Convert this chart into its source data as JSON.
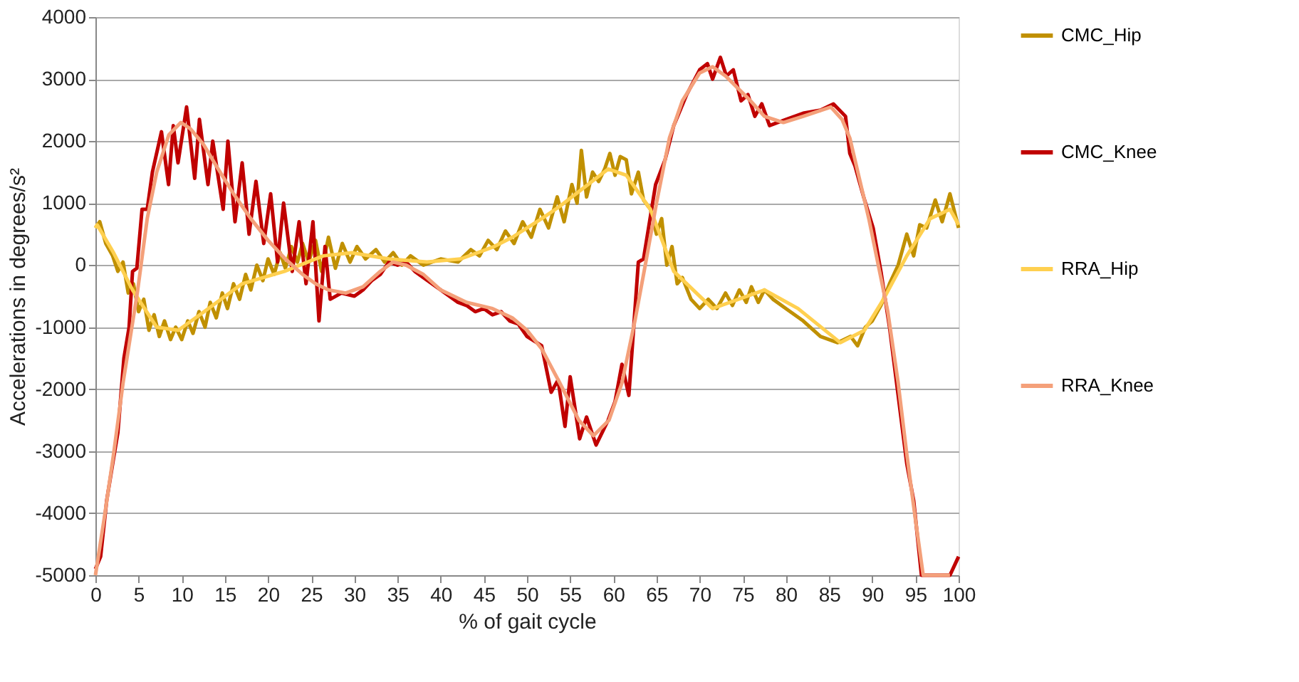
{
  "chart_data": {
    "type": "line",
    "xlabel": "% of gait cycle",
    "ylabel": "Accelerations in degrees/s²",
    "xlim": [
      0,
      100
    ],
    "xticks": [
      0,
      5,
      10,
      15,
      20,
      25,
      30,
      35,
      40,
      45,
      50,
      55,
      60,
      65,
      70,
      75,
      80,
      85,
      90,
      95,
      100
    ],
    "ylim": [
      -5000,
      4000
    ],
    "yticks": [
      -5000,
      -4000,
      -3000,
      -2000,
      -1000,
      0,
      1000,
      2000,
      3000,
      4000
    ],
    "grid": "y",
    "legend": "right",
    "series": [
      {
        "name": "CMC_Hip",
        "color": "#c09000",
        "x": [
          0,
          0.5,
          1.2,
          2,
          2.6,
          3.2,
          3.8,
          4.4,
          5,
          5.6,
          6.2,
          6.8,
          7.4,
          8,
          8.7,
          9.3,
          10,
          10.7,
          11.3,
          12,
          12.7,
          13.3,
          14,
          14.7,
          15.3,
          16,
          16.7,
          17.4,
          18,
          18.7,
          19.4,
          20,
          20.7,
          21.4,
          22,
          22.7,
          23.4,
          24,
          24.7,
          25.5,
          26.2,
          27,
          27.8,
          28.6,
          29.5,
          30.3,
          31.3,
          32.5,
          33.5,
          34.5,
          35.5,
          36.5,
          38,
          40,
          42,
          43.5,
          44.5,
          45.5,
          46.5,
          47.5,
          48.5,
          49.5,
          50.5,
          51.5,
          52.5,
          53.5,
          54.3,
          55.2,
          55.8,
          56.3,
          56.9,
          57.6,
          58.3,
          59,
          59.6,
          60.2,
          60.8,
          61.5,
          62.1,
          62.9,
          63.5,
          64.3,
          65,
          65.6,
          66.2,
          66.8,
          67.4,
          68,
          69,
          70,
          71,
          72,
          73,
          73.8,
          74.6,
          75.4,
          76,
          76.8,
          77.5,
          78.5,
          80,
          82,
          84,
          86,
          87.5,
          88.3,
          89.2,
          90,
          91,
          92,
          93,
          94,
          94.8,
          95.5,
          96.3,
          97.3,
          98.1,
          99,
          100
        ],
        "values": [
          600,
          700,
          350,
          150,
          -100,
          50,
          -450,
          -300,
          -750,
          -550,
          -1050,
          -800,
          -1150,
          -900,
          -1200,
          -1000,
          -1200,
          -900,
          -1100,
          -750,
          -1000,
          -600,
          -850,
          -450,
          -700,
          -300,
          -550,
          -150,
          -400,
          0,
          -250,
          100,
          -150,
          200,
          -50,
          300,
          50,
          350,
          50,
          400,
          -100,
          450,
          -50,
          350,
          50,
          300,
          100,
          250,
          50,
          200,
          0,
          150,
          0,
          100,
          50,
          250,
          150,
          400,
          250,
          550,
          350,
          700,
          450,
          900,
          600,
          1100,
          700,
          1300,
          1000,
          1850,
          1100,
          1500,
          1350,
          1550,
          1800,
          1450,
          1750,
          1700,
          1150,
          1500,
          1050,
          900,
          500,
          750,
          0,
          300,
          -300,
          -200,
          -550,
          -700,
          -550,
          -700,
          -450,
          -650,
          -400,
          -600,
          -350,
          -600,
          -400,
          -550,
          -700,
          -900,
          -1150,
          -1250,
          -1150,
          -1300,
          -1000,
          -900,
          -650,
          -300,
          0,
          500,
          150,
          650,
          600,
          1050,
          700,
          1150,
          600
        ]
      },
      {
        "name": "CMC_Knee",
        "color": "#c00000",
        "x": [
          0,
          0.6,
          1.3,
          2,
          2.6,
          3.3,
          3.9,
          4.3,
          4.8,
          5.4,
          6,
          6.6,
          7.65,
          8.47,
          9.02,
          9.57,
          10.56,
          11.5,
          12.05,
          13.04,
          13.59,
          14.8,
          15.35,
          16.17,
          17,
          17.8,
          18.6,
          19.5,
          20.3,
          21.1,
          21.8,
          22.8,
          23.6,
          24.4,
          25.2,
          25.9,
          26.6,
          27.2,
          28.5,
          30,
          31,
          32,
          33,
          34,
          35,
          36,
          37,
          38,
          40,
          42,
          43,
          44,
          45,
          46,
          47,
          48,
          49,
          50,
          51.7,
          52.8,
          53.6,
          54.4,
          55,
          56.1,
          56.9,
          58,
          59.4,
          60.2,
          61,
          61.8,
          62.9,
          63.5,
          64.9,
          66,
          67,
          68.5,
          70,
          70.9,
          71.5,
          72.4,
          73.1,
          73.9,
          74.8,
          75.6,
          76.4,
          77.2,
          78.1,
          80,
          82,
          84,
          85.5,
          86.9,
          87.4,
          88,
          89,
          90.1,
          91,
          92,
          93,
          94,
          94.8,
          95.7,
          99,
          100
        ],
        "values": [
          -4900,
          -4700,
          -3800,
          -3200,
          -2700,
          -1500,
          -1000,
          -100,
          -50,
          900,
          900,
          1500,
          2150,
          1300,
          2250,
          1650,
          2550,
          1400,
          2350,
          1300,
          2000,
          900,
          2000,
          700,
          1650,
          500,
          1350,
          350,
          1150,
          50,
          1000,
          -100,
          700,
          -300,
          700,
          -900,
          300,
          -550,
          -450,
          -500,
          -400,
          -250,
          -150,
          50,
          0,
          50,
          -100,
          -200,
          -400,
          -600,
          -650,
          -750,
          -700,
          -800,
          -750,
          -900,
          -950,
          -1150,
          -1300,
          -2050,
          -1850,
          -2600,
          -1800,
          -2800,
          -2450,
          -2900,
          -2500,
          -2200,
          -1600,
          -2100,
          50,
          100,
          1300,
          1700,
          2250,
          2750,
          3150,
          3250,
          3000,
          3350,
          3050,
          3150,
          2650,
          2750,
          2400,
          2600,
          2250,
          2350,
          2450,
          2500,
          2600,
          2400,
          1800,
          1600,
          1100,
          600,
          -100,
          -1000,
          -2100,
          -3200,
          -3800,
          -5000,
          -5000,
          -4700
        ]
      },
      {
        "name": "RRA_Hip",
        "color": "#ffd050",
        "x": [
          0,
          0.2,
          2.1,
          4.3,
          7.1,
          9.6,
          12.6,
          17,
          21.9,
          26.4,
          29.7,
          34,
          38.4,
          42.3,
          46.2,
          48.3,
          51.7,
          53.8,
          59.4,
          61.5,
          64.3,
          67,
          71.5,
          77.5,
          81.4,
          86.3,
          89.1,
          91.3,
          94,
          96.7,
          99,
          100
        ],
        "values": [
          600,
          650,
          200,
          -400,
          -1000,
          -1050,
          -750,
          -300,
          -100,
          150,
          200,
          100,
          50,
          100,
          300,
          450,
          750,
          950,
          1550,
          1450,
          900,
          -100,
          -700,
          -400,
          -700,
          -1250,
          -1050,
          -550,
          150,
          750,
          900,
          650
        ]
      },
      {
        "name": "RRA_Knee",
        "color": "#f4a07a",
        "x": [
          0,
          1,
          2.1,
          3.2,
          4.9,
          6,
          7.1,
          8.5,
          9.9,
          11,
          12.5,
          14,
          16,
          18,
          20,
          22,
          24,
          25.5,
          27,
          29,
          31,
          33,
          34.5,
          36,
          38,
          40,
          43,
          46,
          48.3,
          50,
          51.7,
          53.8,
          56,
          57.7,
          59.5,
          61,
          62.5,
          63.7,
          65,
          66.5,
          68,
          70,
          71.5,
          73,
          75.9,
          77.5,
          79.7,
          82,
          85.2,
          86.5,
          87.4,
          88.5,
          89.6,
          90.7,
          91.8,
          93,
          94,
          95,
          95.9,
          97,
          98,
          99
        ],
        "values": [
          -5000,
          -4100,
          -3050,
          -1900,
          -400,
          750,
          1500,
          2100,
          2300,
          2200,
          1950,
          1600,
          1150,
          750,
          400,
          100,
          -150,
          -300,
          -400,
          -450,
          -350,
          -100,
          50,
          0,
          -150,
          -400,
          -600,
          -700,
          -850,
          -1050,
          -1350,
          -1900,
          -2500,
          -2750,
          -2500,
          -1900,
          -900,
          0,
          1000,
          2050,
          2650,
          3100,
          3200,
          3050,
          2650,
          2400,
          2300,
          2400,
          2550,
          2350,
          2050,
          1400,
          750,
          0,
          -750,
          -1900,
          -3050,
          -4100,
          -5000,
          -5000,
          -5000,
          -5000
        ]
      }
    ]
  }
}
